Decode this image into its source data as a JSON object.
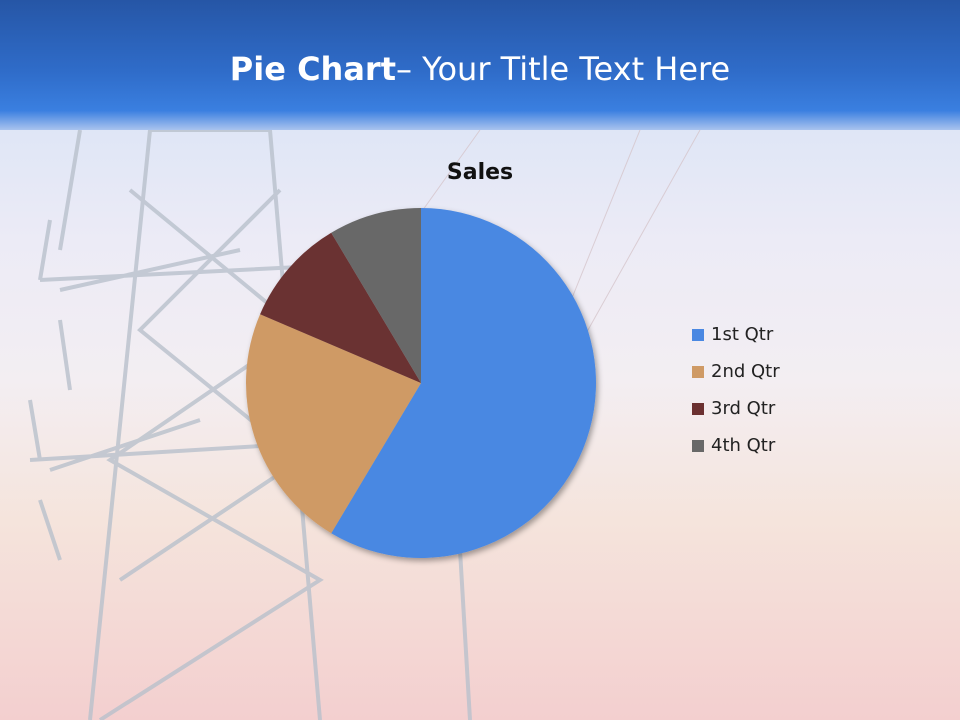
{
  "slide": {
    "title_bold": "Pie Chart",
    "title_rest": "– Your Title Text Here"
  },
  "chart_data": {
    "type": "pie",
    "title": "Sales",
    "categories": [
      "1st Qtr",
      "2nd Qtr",
      "3rd Qtr",
      "4th Qtr"
    ],
    "values": [
      8.2,
      3.2,
      1.4,
      1.2
    ],
    "colors": [
      "#4a88e2",
      "#cf9a65",
      "#6b3030",
      "#686868"
    ],
    "legend": "right",
    "start_angle": "top, clockwise"
  }
}
